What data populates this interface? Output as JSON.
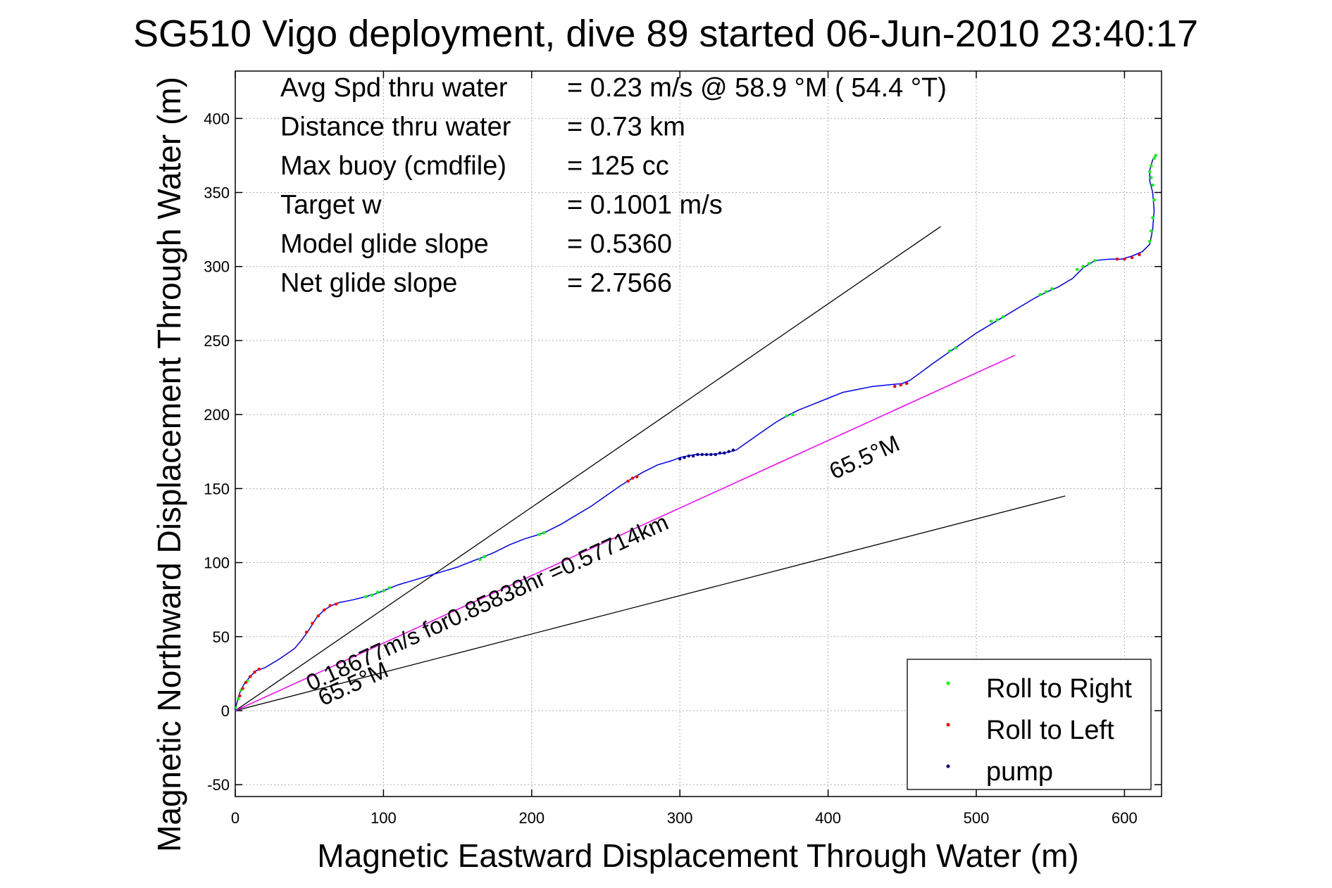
{
  "chart_data": {
    "type": "line",
    "title": "SG510 Vigo deployment, dive 89 started 06-Jun-2010 23:40:17",
    "xlabel": "Magnetic Eastward Displacement Through Water (m)",
    "ylabel": "Magnetic Northward Displacement Through Water (m)",
    "xlim": [
      0,
      625
    ],
    "ylim": [
      -58,
      432
    ],
    "x_ticks": [
      0,
      100,
      200,
      300,
      400,
      500,
      600
    ],
    "x_tick_labels": [
      "0",
      "100",
      "200",
      "300",
      "400",
      "500",
      "600"
    ],
    "y_ticks": [
      -50,
      0,
      50,
      100,
      150,
      200,
      250,
      300,
      350,
      400
    ],
    "y_tick_labels": [
      "-50",
      "0",
      "50",
      "100",
      "150",
      "200",
      "250",
      "300",
      "350",
      "400"
    ],
    "grid": true,
    "legend_position": "bottom-right",
    "info_lines": [
      {
        "label": "Avg Spd thru water",
        "value": "=  0.23 m/s @  58.9 °M ( 54.4 °T)"
      },
      {
        "label": "Distance thru water",
        "value": "=  0.73 km"
      },
      {
        "label": "Max buoy (cmdfile)",
        "value": "= 125 cc"
      },
      {
        "label": "Target w",
        "value": "= 0.1001 m/s"
      },
      {
        "label": "Model glide slope",
        "value": "= 0.5360"
      },
      {
        "label": "Net glide slope",
        "value": "= 2.7566"
      }
    ],
    "track": {
      "color": "#0000ff",
      "x": [
        0,
        1,
        3,
        6,
        10,
        14,
        20,
        30,
        40,
        45,
        50,
        55,
        60,
        65,
        70,
        75,
        80,
        88,
        95,
        100,
        110,
        120,
        130,
        140,
        150,
        160,
        168,
        175,
        185,
        195,
        205,
        210,
        220,
        230,
        240,
        250,
        260,
        268,
        275,
        285,
        295,
        300,
        305,
        310,
        320,
        330,
        338,
        345,
        355,
        365,
        372,
        380,
        390,
        400,
        410,
        420,
        430,
        440,
        450,
        455,
        462,
        470,
        480,
        490,
        500,
        510,
        520,
        530,
        540,
        548,
        555,
        565,
        572,
        580,
        590,
        598,
        605,
        612,
        617,
        619,
        620,
        619,
        617,
        617,
        619,
        621
      ],
      "y": [
        0,
        5,
        12,
        18,
        23,
        27,
        29,
        35,
        42,
        48,
        55,
        63,
        68,
        71,
        73,
        74,
        75,
        77,
        79,
        81,
        85,
        88,
        91,
        94,
        97,
        101,
        104,
        107,
        112,
        116,
        119,
        121,
        126,
        132,
        138,
        145,
        152,
        157,
        161,
        166,
        169,
        171,
        172,
        173,
        173,
        174,
        176,
        181,
        188,
        195,
        199,
        203,
        207,
        211,
        215,
        217,
        219,
        220,
        221,
        223,
        228,
        234,
        241,
        248,
        255,
        261,
        267,
        273,
        279,
        283,
        286,
        292,
        299,
        304,
        305,
        305,
        307,
        310,
        315,
        325,
        338,
        350,
        358,
        365,
        372,
        375
      ]
    },
    "rolls": {
      "colors": {
        "right": "#00ff00",
        "left": "#ff0000",
        "pump": "#000080"
      },
      "right_x": [
        0,
        2,
        4,
        8,
        88,
        92,
        96,
        100,
        104,
        165,
        168,
        205,
        208,
        372,
        376,
        482,
        486,
        510,
        514,
        518,
        543,
        547,
        551,
        568,
        572,
        576,
        580,
        617,
        618,
        619,
        620,
        619,
        618,
        617,
        618,
        620,
        621
      ],
      "right_y": [
        2,
        8,
        14,
        20,
        77,
        78,
        80,
        81,
        83,
        102,
        104,
        119,
        120,
        199,
        200,
        243,
        245,
        263,
        264,
        266,
        281,
        283,
        285,
        298,
        300,
        302,
        304,
        317,
        324,
        333,
        345,
        355,
        360,
        364,
        368,
        373,
        375
      ],
      "left_x": [
        3,
        5,
        7,
        10,
        13,
        16,
        48,
        52,
        56,
        60,
        64,
        68,
        265,
        268,
        271,
        445,
        449,
        453,
        595,
        600,
        605,
        610
      ],
      "left_y": [
        10,
        15,
        19,
        23,
        26,
        28,
        53,
        59,
        64,
        68,
        71,
        72,
        155,
        157,
        158,
        219,
        220,
        221,
        305,
        305,
        306,
        308
      ],
      "pump_x": [
        300,
        303,
        306,
        309,
        312,
        315,
        318,
        321,
        324,
        327,
        330,
        333,
        336
      ],
      "pump_y": [
        170,
        171,
        172,
        172,
        173,
        173,
        173,
        173,
        173,
        174,
        174,
        175,
        176
      ]
    },
    "heading_lines": {
      "color": "#000000",
      "lines": [
        {
          "x": [
            0,
            476
          ],
          "y": [
            0,
            327
          ]
        },
        {
          "x": [
            0,
            560
          ],
          "y": [
            0,
            145
          ]
        }
      ]
    },
    "net_line": {
      "color": "#ff00ff",
      "x": [
        0,
        526
      ],
      "y": [
        0,
        240
      ]
    },
    "annotations": [
      {
        "text": "0.18677m/s for0.85838hr =0.57714km",
        "x": 51,
        "y": 13,
        "rotate": -24.5,
        "size": 33
      },
      {
        "text": "65.5°M",
        "x": 59,
        "y": 3,
        "rotate": -24.5,
        "size": 33
      },
      {
        "text": "65.5°M",
        "x": 404,
        "y": 156,
        "rotate": -24.5,
        "size": 33
      }
    ],
    "legend": [
      {
        "label": "Roll to Right",
        "color": "#00ff00"
      },
      {
        "label": "Roll to Left",
        "color": "#ff0000"
      },
      {
        "label": "pump",
        "color": "#000080"
      }
    ]
  }
}
